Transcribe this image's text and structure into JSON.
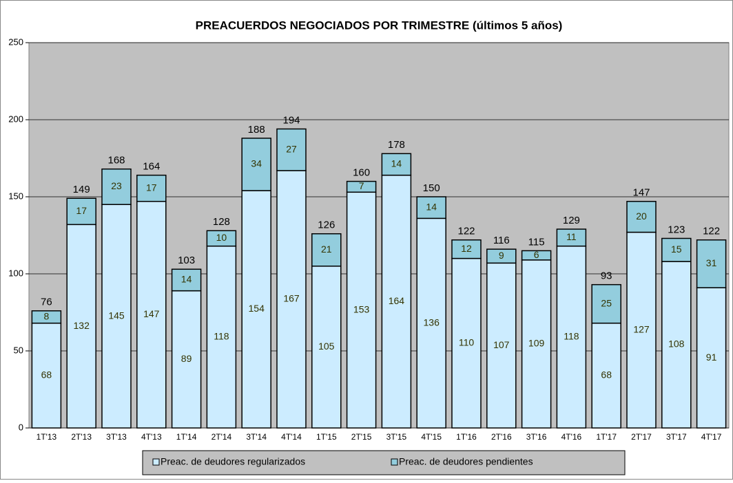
{
  "chart_data": {
    "type": "stacked_bar",
    "title": "PREACUERDOS NEGOCIADOS POR TRIMESTRE (últimos 5 años)",
    "categories": [
      "1T'13",
      "2T'13",
      "3T'13",
      "4T'13",
      "1T'14",
      "2T'14",
      "3T'14",
      "4T'14",
      "1T'15",
      "2T'15",
      "3T'15",
      "4T'15",
      "1T'16",
      "2T'16",
      "3T'16",
      "4T'16",
      "1T'17",
      "2T'17",
      "3T'17",
      "4T'17"
    ],
    "series": [
      {
        "name": "Preac. de deudores regularizados",
        "color": "#ccecff",
        "values": [
          68,
          132,
          145,
          147,
          89,
          118,
          154,
          167,
          105,
          153,
          164,
          136,
          110,
          107,
          109,
          118,
          68,
          127,
          108,
          91
        ]
      },
      {
        "name": "Preac. de deudores pendientes",
        "color": "#93cddd",
        "values": [
          8,
          17,
          23,
          17,
          14,
          10,
          34,
          27,
          21,
          7,
          14,
          14,
          12,
          9,
          6,
          11,
          25,
          20,
          15,
          31
        ]
      }
    ],
    "totals": [
      76,
      149,
      168,
      164,
      103,
      128,
      188,
      194,
      126,
      160,
      178,
      150,
      122,
      116,
      115,
      129,
      93,
      147,
      123,
      122
    ],
    "ylim": [
      0,
      250
    ],
    "yticks": [
      0,
      50,
      100,
      150,
      200,
      250
    ],
    "grid": true,
    "legend": "bottom"
  }
}
